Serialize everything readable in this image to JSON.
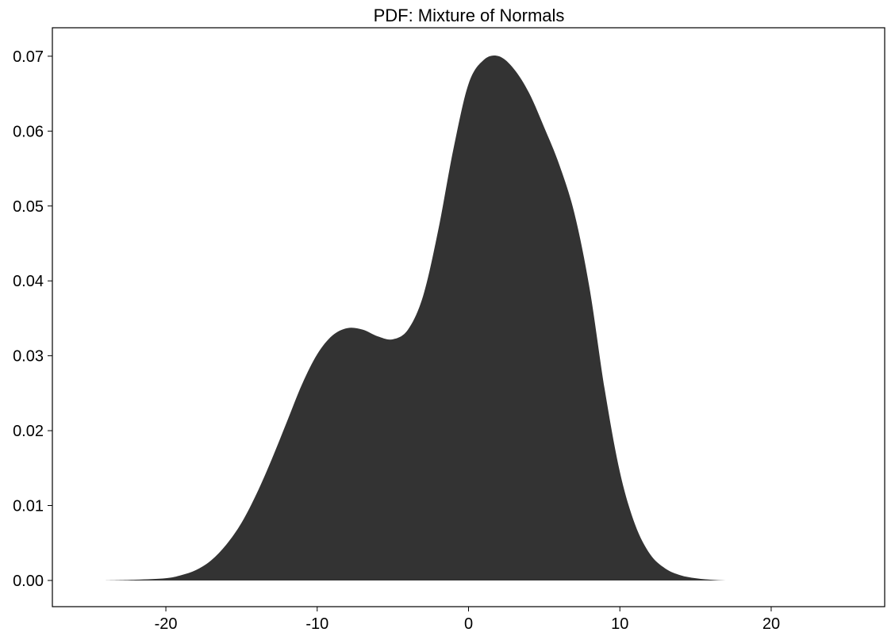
{
  "chart_data": {
    "type": "area",
    "title": "PDF: Mixture of Normals",
    "xlabel": "",
    "ylabel": "",
    "xlim": [
      -27.5,
      27.5
    ],
    "ylim": [
      -0.0035,
      0.0738
    ],
    "x_ticks": [
      -20,
      -10,
      0,
      10,
      20
    ],
    "x_tick_labels": [
      "-20",
      "-10",
      "0",
      "10",
      "20"
    ],
    "y_ticks": [
      0.0,
      0.01,
      0.02,
      0.03,
      0.04,
      0.05,
      0.06,
      0.07
    ],
    "y_tick_labels": [
      "0.00",
      "0.01",
      "0.02",
      "0.03",
      "0.04",
      "0.05",
      "0.06",
      "0.07"
    ],
    "grid": false,
    "fill_color": "#333333",
    "series": [
      {
        "x": [
          -24,
          -22,
          -20,
          -19,
          -18,
          -17,
          -16,
          -15,
          -14,
          -13,
          -12,
          -11,
          -10,
          -9,
          -8,
          -7,
          -6,
          -5,
          -4,
          -3,
          -2,
          -1,
          0,
          1,
          2,
          3,
          4,
          5,
          6,
          7,
          8,
          9,
          10,
          11,
          12,
          13,
          14,
          15,
          16,
          17,
          18,
          19
        ],
        "y": [
          0.0,
          0.0001,
          0.0003,
          0.0007,
          0.0014,
          0.0027,
          0.0048,
          0.0077,
          0.0116,
          0.0162,
          0.0212,
          0.0262,
          0.0302,
          0.0327,
          0.0337,
          0.0335,
          0.0326,
          0.0322,
          0.0335,
          0.038,
          0.0468,
          0.0576,
          0.0663,
          0.0695,
          0.07,
          0.0683,
          0.0651,
          0.0605,
          0.0555,
          0.049,
          0.039,
          0.0255,
          0.0145,
          0.0075,
          0.0035,
          0.0016,
          0.0007,
          0.0003,
          0.0001,
          0.0,
          0.0,
          0.0
        ]
      }
    ]
  }
}
